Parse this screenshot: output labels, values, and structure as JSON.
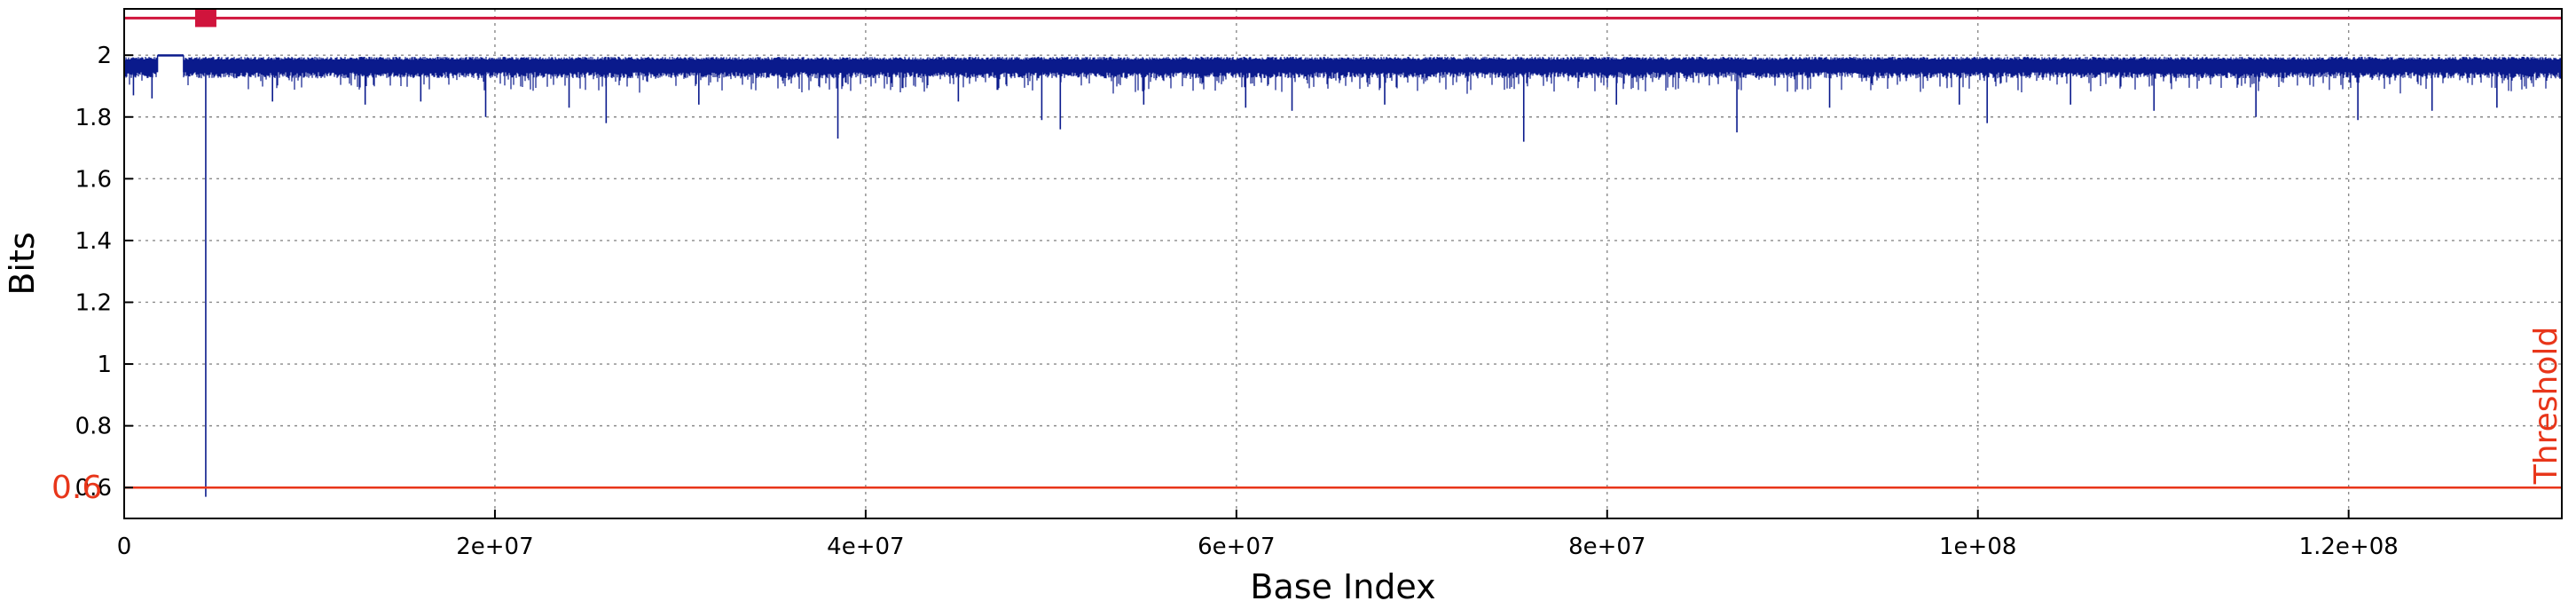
{
  "chart_data": {
    "type": "line",
    "title": "",
    "xlabel": "Base Index",
    "ylabel": "Bits",
    "xlim": [
      0,
      131500000
    ],
    "ylim": [
      0.5,
      2.15
    ],
    "grid": true,
    "x_ticks": [
      {
        "value": 0,
        "label": "0"
      },
      {
        "value": 20000000,
        "label": "2e+07"
      },
      {
        "value": 40000000,
        "label": "4e+07"
      },
      {
        "value": 60000000,
        "label": "6e+07"
      },
      {
        "value": 80000000,
        "label": "8e+07"
      },
      {
        "value": 100000000,
        "label": "1e+08"
      },
      {
        "value": 120000000,
        "label": "1.2e+08"
      }
    ],
    "y_ticks": [
      {
        "value": 0.6,
        "label": "0.6"
      },
      {
        "value": 0.8,
        "label": "0.8"
      },
      {
        "value": 1.0,
        "label": "1"
      },
      {
        "value": 1.2,
        "label": "1.2"
      },
      {
        "value": 1.4,
        "label": "1.4"
      },
      {
        "value": 1.6,
        "label": "1.6"
      },
      {
        "value": 1.8,
        "label": "1.8"
      },
      {
        "value": 2.0,
        "label": "2"
      }
    ],
    "series": [
      {
        "color": "#0a1a8c",
        "band_low": 1.945,
        "band_high": 1.995,
        "dips": [
          {
            "x": 500000,
            "y": 1.87
          },
          {
            "x": 1500000,
            "y": 1.86
          },
          {
            "x": 4400000,
            "y": 0.57
          },
          {
            "x": 8000000,
            "y": 1.85
          },
          {
            "x": 13000000,
            "y": 1.84
          },
          {
            "x": 16000000,
            "y": 1.85
          },
          {
            "x": 19500000,
            "y": 1.8
          },
          {
            "x": 24000000,
            "y": 1.83
          },
          {
            "x": 26000000,
            "y": 1.78
          },
          {
            "x": 31000000,
            "y": 1.84
          },
          {
            "x": 38500000,
            "y": 1.73
          },
          {
            "x": 45000000,
            "y": 1.85
          },
          {
            "x": 49500000,
            "y": 1.79
          },
          {
            "x": 50500000,
            "y": 1.76
          },
          {
            "x": 55000000,
            "y": 1.84
          },
          {
            "x": 60500000,
            "y": 1.83
          },
          {
            "x": 63000000,
            "y": 1.82
          },
          {
            "x": 68000000,
            "y": 1.84
          },
          {
            "x": 75500000,
            "y": 1.72
          },
          {
            "x": 80500000,
            "y": 1.84
          },
          {
            "x": 87000000,
            "y": 1.75
          },
          {
            "x": 92000000,
            "y": 1.83
          },
          {
            "x": 99000000,
            "y": 1.84
          },
          {
            "x": 100500000,
            "y": 1.78
          },
          {
            "x": 105000000,
            "y": 1.84
          },
          {
            "x": 109500000,
            "y": 1.82
          },
          {
            "x": 115000000,
            "y": 1.8
          },
          {
            "x": 120500000,
            "y": 1.79
          },
          {
            "x": 124500000,
            "y": 1.82
          },
          {
            "x": 128000000,
            "y": 1.83
          }
        ],
        "flat_segment": {
          "x_start": 1800000,
          "x_end": 3200000,
          "y": 2.0
        }
      }
    ],
    "threshold": {
      "value": 0.6,
      "label": "0.6",
      "name": "Threshold",
      "color": "#e8361a"
    },
    "upper_line": {
      "value": 2.12,
      "color": "#d0143c",
      "marker_x": 4400000
    }
  }
}
